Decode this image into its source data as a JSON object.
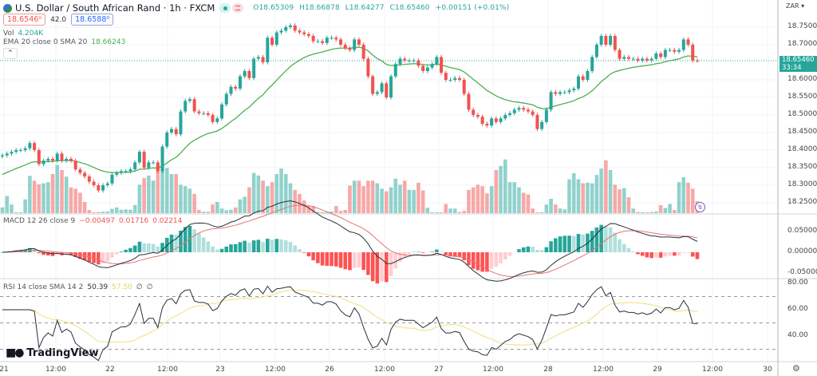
{
  "header": {
    "title": "U.S. Dollar / South African Rand · 1h · FXCM",
    "ohlc": {
      "open": "O18.65309",
      "high": "H18.66878",
      "low": "L18.64277",
      "close": "C18.65460",
      "change": "+0.00151 (+0.01%)"
    },
    "sell_price": "18.6546⁰",
    "spread": "42.0",
    "buy_price": "18.6588⁰",
    "volume_label": "Vol",
    "volume_value": "4.204K",
    "ema_label": "EMA 20 close 0 SMA 20",
    "ema_value": "18.66243",
    "currency": "ZAR",
    "last_price": "18.65460",
    "countdown": "33:34"
  },
  "macd_header": {
    "label": "MACD 12 26 close 9",
    "hist": "−0.00497",
    "macd": "0.01716",
    "signal": "0.02214"
  },
  "rsi_header": {
    "label": "RSI 14 close SMA 14 2",
    "rsi": "50.39",
    "sma": "57.50",
    "extra1": "∅",
    "extra2": "∅"
  },
  "brand": "TradingView",
  "colors": {
    "up": "#26a69a",
    "down": "#ef5350",
    "ema": "#4caf50",
    "macd": "#2a2e39",
    "signal": "#e57373",
    "rsi": "#2a2e39",
    "rsi_sma": "#f2e394"
  },
  "chart_data": {
    "type": "candlestick",
    "interval": "1h",
    "price_axis": {
      "ticks": [
        "18.75000",
        "18.70000",
        "18.60000",
        "18.55000",
        "18.50000",
        "18.45000",
        "18.40000",
        "18.35000",
        "18.30000",
        "18.25000"
      ],
      "range": [
        18.22,
        18.79
      ]
    },
    "time_axis": {
      "ticks": [
        "21",
        "12:00",
        "22",
        "12:00",
        "23",
        "12:00",
        "26",
        "12:00",
        "27",
        "12:00",
        "28",
        "12:00",
        "29",
        "12:00",
        "30"
      ]
    },
    "close": [
      18.385,
      18.39,
      18.395,
      18.4,
      18.4,
      18.405,
      18.42,
      18.4,
      18.36,
      18.37,
      18.375,
      18.37,
      18.39,
      18.37,
      18.375,
      18.37,
      18.345,
      18.335,
      18.325,
      18.31,
      18.3,
      18.285,
      18.3,
      18.305,
      18.33,
      18.335,
      18.34,
      18.34,
      18.345,
      18.365,
      18.395,
      18.35,
      18.365,
      18.365,
      18.34,
      18.41,
      18.45,
      18.46,
      18.445,
      18.51,
      18.54,
      18.545,
      18.51,
      18.505,
      18.505,
      18.5,
      18.48,
      18.49,
      18.53,
      18.56,
      18.58,
      18.575,
      18.61,
      18.625,
      18.605,
      18.66,
      18.665,
      18.65,
      18.72,
      18.7,
      18.735,
      18.74,
      18.75,
      18.755,
      18.74,
      18.735,
      18.73,
      18.725,
      18.71,
      18.71,
      18.705,
      18.72,
      18.72,
      18.715,
      18.7,
      18.69,
      18.685,
      18.715,
      18.7,
      18.66,
      18.61,
      18.56,
      18.565,
      18.59,
      18.55,
      18.61,
      18.645,
      18.66,
      18.655,
      18.655,
      18.655,
      18.64,
      18.625,
      18.635,
      18.645,
      18.665,
      18.62,
      18.6,
      18.6,
      18.605,
      18.6,
      18.56,
      18.515,
      18.5,
      18.495,
      18.475,
      18.47,
      18.49,
      18.48,
      18.49,
      18.5,
      18.505,
      18.515,
      18.52,
      18.515,
      18.51,
      18.5,
      18.46,
      18.48,
      18.515,
      18.565,
      18.56,
      18.565,
      18.565,
      18.57,
      18.575,
      18.61,
      18.6,
      18.625,
      18.665,
      18.7,
      18.725,
      18.7,
      18.725,
      18.685,
      18.66,
      18.665,
      18.66,
      18.66,
      18.655,
      18.66,
      18.655,
      18.66,
      18.675,
      18.665,
      18.685,
      18.685,
      18.68,
      18.685,
      18.715,
      18.7,
      18.655,
      18.6546
    ],
    "volume_k": [
      2,
      6,
      3,
      0.3,
      0.3,
      4.8,
      13,
      11.3,
      10,
      10.4,
      10.8,
      13.6,
      16.8,
      15,
      12.7,
      9,
      8.5,
      7.1,
      3.9,
      1.1,
      0.3,
      0.4,
      0.5,
      0.6,
      1.5,
      2,
      1.2,
      1.3,
      1.2,
      2.8,
      9.9,
      12.2,
      13.1,
      11.3,
      16.8,
      15.5,
      15.7,
      13.6,
      13.6,
      9.9,
      9.4,
      8.5,
      6.7,
      1.1,
      0.5,
      0.5,
      3,
      3.9,
      1.6,
      1,
      1.2,
      2,
      4.8,
      5.7,
      9,
      14,
      13.1,
      11.3,
      9.4,
      10.8,
      13.6,
      15.5,
      13.6,
      10.4,
      8.1,
      6.7,
      4.4,
      2.5,
      2.5,
      0.5,
      0.4,
      0.5,
      0.6,
      2.5,
      0.8,
      1.1,
      9.6,
      11.3,
      11.3,
      9.4,
      11.3,
      11.3,
      10.4,
      8.5,
      7.6,
      9,
      12,
      9.9,
      11.3,
      8.1,
      8.1,
      10.6,
      7.9,
      1.9,
      0.3,
      0.3,
      0.3,
      3.2,
      1.6,
      1.6,
      0.4,
      0.8,
      8.1,
      9,
      9.9,
      9.4,
      6.9,
      9.4,
      15,
      16.4,
      18.7,
      10.8,
      10.8,
      9,
      7.1,
      6.5,
      1.6,
      0.3,
      0.3,
      3,
      5,
      3,
      1.6,
      1.3,
      11.8,
      13.9,
      11.8,
      10.4,
      10.6,
      10.4,
      13.3,
      15.5,
      18.4,
      15,
      9.9,
      8.3,
      8.7,
      5.5,
      1.6,
      0.4,
      0.3,
      0.3,
      0.4,
      0.6,
      2.8,
      1.8,
      3.2,
      1.1,
      10.8,
      12.5,
      10.6,
      8.5,
      4.2
    ],
    "ema_period": 20,
    "macd": {
      "fast": 12,
      "slow": 26,
      "signal": 9,
      "axis_ticks": [
        "0.05000",
        "0.00000",
        "-0.05000"
      ]
    },
    "rsi": {
      "period": 14,
      "sma": 14,
      "axis_ticks": [
        "80.00",
        "60.00",
        "40.00"
      ],
      "bands": [
        70,
        50,
        30
      ]
    }
  }
}
